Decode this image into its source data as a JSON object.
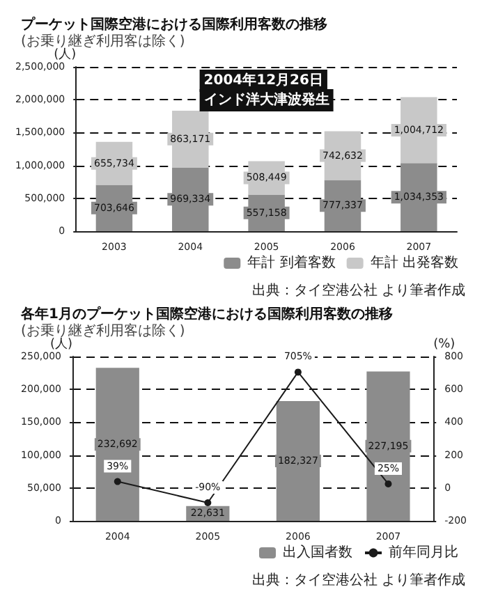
{
  "chart_data": [
    {
      "type": "bar",
      "title": "プーケット国際空港における国際利用客数の推移",
      "subtitle": "(お乗り継ぎ利用客は除く)",
      "ylabel": "(人)",
      "categories": [
        "2003",
        "2004",
        "2005",
        "2006",
        "2007"
      ],
      "stacked": true,
      "series": [
        {
          "name": "年計 到着客数",
          "color": "#8c8c8c",
          "values": [
            703646,
            969334,
            557158,
            777337,
            1034353
          ],
          "value_labels": [
            "703,646",
            "969,334",
            "557,158",
            "777,337",
            "1,034,353"
          ]
        },
        {
          "name": "年計 出発客数",
          "color": "#c8c8c8",
          "values": [
            655734,
            863171,
            508449,
            742632,
            1004712
          ],
          "value_labels": [
            "655,734",
            "863,171",
            "508,449",
            "742,632",
            "1,004,712"
          ]
        }
      ],
      "ylim": [
        0,
        2500000
      ],
      "yticks": [
        0,
        {
          "value": 500000,
          "label": "500,000"
        },
        {
          "value": 1000000,
          "label": "1,000,000"
        },
        {
          "value": 1500000,
          "label": "1,500,000"
        },
        {
          "value": 2000000,
          "label": "2,000,000"
        },
        {
          "value": 2500000,
          "label": "2,500,000"
        }
      ],
      "grid": "y",
      "legend": "bottom right",
      "annotations": [
        "2004年12月26日",
        "インド洋大津波発生",
        "出典：タイ空港公社 より筆者作成"
      ]
    },
    {
      "type": "bar",
      "title": "各年1月のプーケット国際空港における国際利用客数の推移",
      "subtitle": "(お乗り継ぎ利用客は除く)",
      "ylabel": "(人)",
      "y2label": "(%)",
      "categories": [
        "2004",
        "2005",
        "2006",
        "2007"
      ],
      "series": [
        {
          "name": "出入国者数",
          "color": "#8c8c8c",
          "values": [
            232692,
            22631,
            182327,
            227195
          ],
          "value_labels": [
            "232,692",
            "22,631",
            "182,327",
            "227,195"
          ]
        },
        {
          "name": "前年同月比",
          "type": "line",
          "axis": "y2",
          "color": "#1a1a1a",
          "values": [
            39,
            -90,
            705,
            25
          ],
          "value_labels": [
            "39%",
            "-90%",
            "705%",
            "25%"
          ]
        }
      ],
      "ylim": [
        0,
        250000
      ],
      "yticks": [
        0,
        {
          "value": 50000,
          "label": "50,000"
        },
        {
          "value": 100000,
          "label": "100,000"
        },
        {
          "value": 150000,
          "label": "150,000"
        },
        {
          "value": 200000,
          "label": "200,000"
        },
        {
          "value": 250000,
          "label": "250,000"
        }
      ],
      "y2lim": [
        -200,
        800
      ],
      "y2ticks": [
        -200,
        0,
        200,
        400,
        600,
        800
      ],
      "grid": "y",
      "legend": "bottom right",
      "marker": "circle",
      "annotations": [
        "出典：タイ空港公社 より筆者作成"
      ]
    }
  ]
}
